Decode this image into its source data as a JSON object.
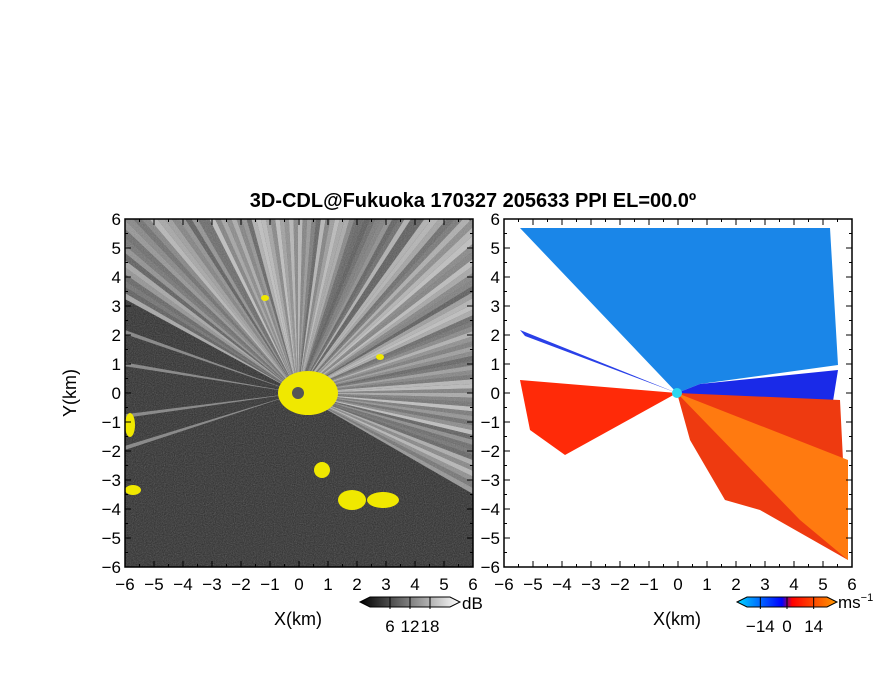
{
  "title": "3D-CDL@Fukuoka 170327 205633 PPI EL=00.0º",
  "chart_data": [
    {
      "panel": "reflectivity",
      "type": "heatmap",
      "xlabel": "X(km)",
      "ylabel": "Y(km)",
      "xlim": [
        -6,
        6
      ],
      "ylim": [
        -6,
        6
      ],
      "x_ticks": [
        "−6",
        "−5",
        "−4",
        "−3",
        "−2",
        "−1",
        "0",
        "1",
        "2",
        "3",
        "4",
        "5",
        "6"
      ],
      "y_ticks": [
        "6",
        "5",
        "4",
        "3",
        "2",
        "1",
        "0",
        "−1",
        "−2",
        "−3",
        "−4",
        "−5",
        "−6"
      ],
      "colorbar": {
        "unit": "dB",
        "ticks": [
          "6",
          "12",
          "18"
        ],
        "tick_values": [
          6,
          12,
          18
        ],
        "range": [
          0,
          24
        ],
        "colors": [
          "#000000",
          "#ffffff"
        ],
        "over_color": "#ffff00"
      },
      "background_color": "#2b2b2b",
      "beam_color": "#d8d8d8",
      "saturated_color": "#f0e800"
    },
    {
      "panel": "doppler-velocity",
      "type": "heatmap",
      "xlabel": "X(km)",
      "ylabel": "",
      "xlim": [
        -6,
        6
      ],
      "ylim": [
        -6,
        6
      ],
      "x_ticks": [
        "−6",
        "−5",
        "−4",
        "−3",
        "−2",
        "−1",
        "0",
        "1",
        "2",
        "3",
        "4",
        "5",
        "6"
      ],
      "y_ticks": [
        "6",
        "5",
        "4",
        "3",
        "2",
        "1",
        "0",
        "−1",
        "−2",
        "−3",
        "−4",
        "−5",
        "−6"
      ],
      "colorbar": {
        "unit": "ms",
        "unit_exponent": "−1",
        "ticks": [
          "−14",
          "0",
          "14"
        ],
        "tick_values": [
          -14,
          0,
          14
        ],
        "range": [
          -21,
          21
        ],
        "colors": [
          "#00d8ff",
          "#0000ff",
          "#ff0000",
          "#ff9a00"
        ]
      },
      "approaching_color": "#1a86e8",
      "receding_color": "#ee3a10"
    }
  ]
}
